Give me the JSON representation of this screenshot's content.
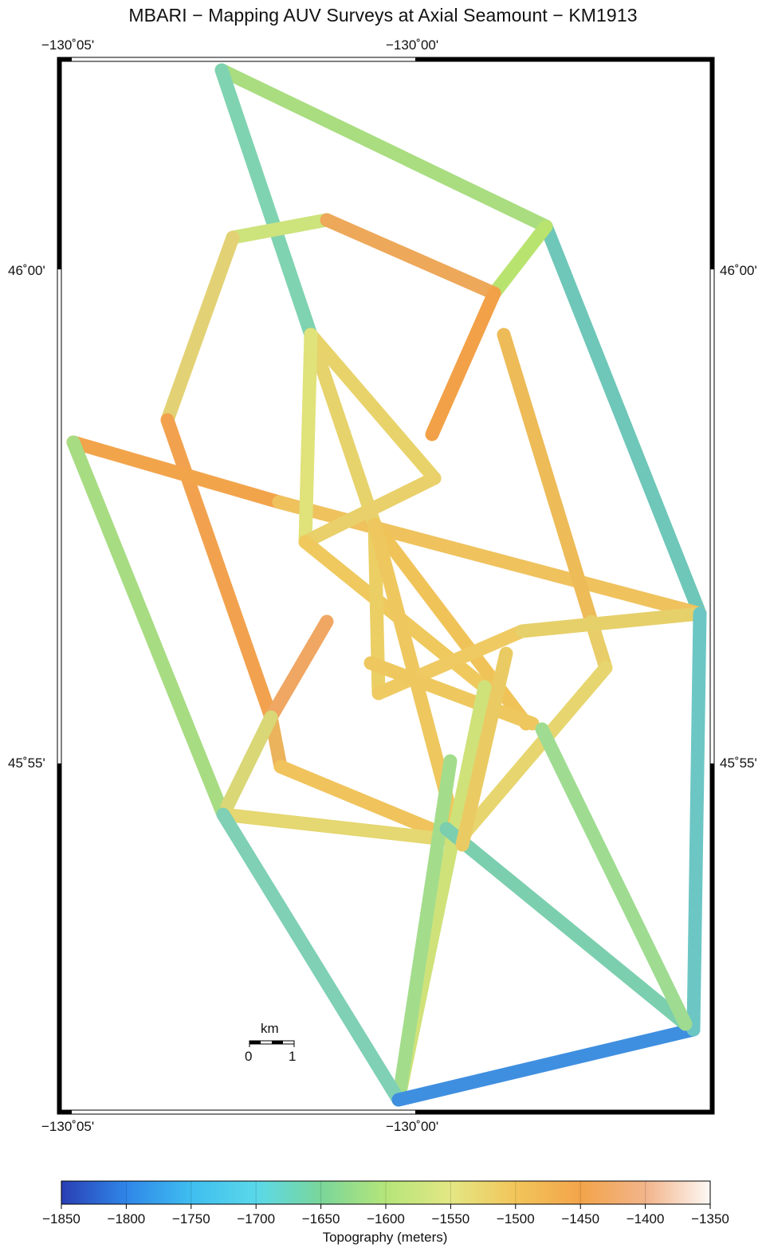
{
  "title": "MBARI − Mapping AUV Surveys at Axial Seamount − KM1913",
  "axes": {
    "top_labels": [
      "−130˚05'",
      "−130˚00'"
    ],
    "bottom_labels": [
      "−130˚05'",
      "−130˚00'"
    ],
    "left_labels": [
      "46˚00'",
      "45˚55'"
    ],
    "right_labels": [
      "46˚00'",
      "45˚55'"
    ]
  },
  "scale_bar": {
    "unit": "km",
    "start": "0",
    "end": "1"
  },
  "colorbar": {
    "label": "Topography (meters)",
    "ticks": [
      "−1850",
      "−1800",
      "−1750",
      "−1700",
      "−1650",
      "−1600",
      "−1550",
      "−1500",
      "−1450",
      "−1400",
      "−1350"
    ],
    "range": [
      -1850,
      -1350
    ],
    "colors": [
      "#2a3fb4",
      "#2f86e8",
      "#3fbef0",
      "#5ad8ea",
      "#7ad69a",
      "#b5e57a",
      "#e3e784",
      "#f2c55a",
      "#f3a44a",
      "#f2b48a",
      "#fdf8f4"
    ]
  }
}
